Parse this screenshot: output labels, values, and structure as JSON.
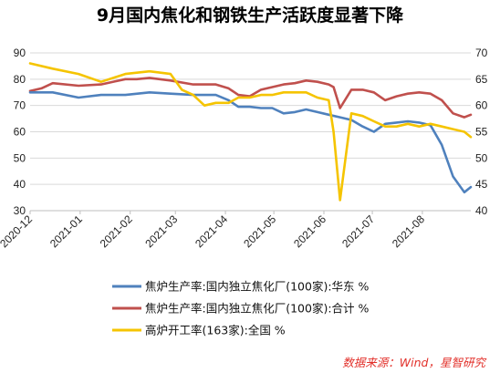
{
  "chart_data": {
    "type": "line",
    "title": "9月国内焦化和钢铁生产活跃度显著下降",
    "x_ticks": [
      "2020-12",
      "2021-01",
      "2021-02",
      "2021-03",
      "2021-04",
      "2021-05",
      "2021-06",
      "2021-07",
      "2021-08"
    ],
    "y_left": {
      "ticks": [
        "30",
        "40",
        "50",
        "60",
        "70",
        "80",
        "90"
      ],
      "min": 30,
      "max": 90
    },
    "y_right": {
      "ticks": [
        "40",
        "45",
        "50",
        "55",
        "60",
        "65",
        "70"
      ],
      "min": 40,
      "max": 70
    },
    "grid": true,
    "legend_position": "bottom",
    "source": "数据来源：Wind，星智研究",
    "series": [
      {
        "name": "焦炉生产率:国内独立焦化厂(100家):华东 %",
        "axis": "left",
        "color": "#4f81bd",
        "x": [
          "2020-12-01",
          "2020-12-15",
          "2020-12-31",
          "2021-01-14",
          "2021-01-29",
          "2021-02-13",
          "2021-02-26",
          "2021-03-12",
          "2021-03-26",
          "2021-04-03",
          "2021-04-09",
          "2021-04-16",
          "2021-04-23",
          "2021-04-30",
          "2021-05-07",
          "2021-05-14",
          "2021-05-21",
          "2021-05-28",
          "2021-06-04",
          "2021-06-11",
          "2021-06-18",
          "2021-06-25",
          "2021-07-02",
          "2021-07-09",
          "2021-07-16",
          "2021-07-23",
          "2021-07-30",
          "2021-08-06",
          "2021-08-13",
          "2021-08-20",
          "2021-08-27",
          "2021-08-31"
        ],
        "values": [
          75,
          75,
          73,
          74,
          74,
          75,
          74.5,
          74,
          74,
          72,
          69.5,
          69.5,
          69,
          69,
          67,
          67.5,
          68.5,
          67.5,
          66.5,
          65.5,
          64.5,
          62,
          60,
          63,
          63.5,
          64,
          63.5,
          62.5,
          55,
          43,
          37,
          39
        ]
      },
      {
        "name": "焦炉生产率:国内独立焦化厂(100家):合计 %",
        "axis": "left",
        "color": "#c0504d",
        "x": [
          "2020-12-01",
          "2020-12-08",
          "2020-12-15",
          "2020-12-31",
          "2021-01-14",
          "2021-01-29",
          "2021-02-05",
          "2021-02-13",
          "2021-02-26",
          "2021-03-12",
          "2021-03-19",
          "2021-03-26",
          "2021-04-03",
          "2021-04-09",
          "2021-04-16",
          "2021-04-23",
          "2021-04-30",
          "2021-05-07",
          "2021-05-14",
          "2021-05-21",
          "2021-05-28",
          "2021-06-04",
          "2021-06-07",
          "2021-06-11",
          "2021-06-18",
          "2021-06-25",
          "2021-07-02",
          "2021-07-09",
          "2021-07-16",
          "2021-07-23",
          "2021-07-30",
          "2021-08-06",
          "2021-08-13",
          "2021-08-20",
          "2021-08-27",
          "2021-08-31"
        ],
        "values": [
          75.5,
          76.5,
          78.5,
          77.5,
          78,
          80,
          80,
          80.5,
          79.5,
          78,
          78,
          78,
          76.5,
          74,
          73.5,
          76,
          77,
          78,
          78.5,
          79.5,
          79,
          78,
          77,
          69,
          76,
          76,
          75,
          72,
          73.5,
          74.5,
          75,
          74.5,
          72,
          67,
          65.5,
          66.5
        ]
      },
      {
        "name": "高炉开工率(163家):全国 %",
        "axis": "right",
        "color": "#f5c400",
        "x": [
          "2020-12-01",
          "2020-12-15",
          "2020-12-31",
          "2021-01-14",
          "2021-01-29",
          "2021-02-13",
          "2021-02-26",
          "2021-03-05",
          "2021-03-12",
          "2021-03-19",
          "2021-03-26",
          "2021-04-03",
          "2021-04-09",
          "2021-04-16",
          "2021-04-23",
          "2021-04-30",
          "2021-05-07",
          "2021-05-14",
          "2021-05-21",
          "2021-05-28",
          "2021-06-04",
          "2021-06-07",
          "2021-06-11",
          "2021-06-18",
          "2021-06-25",
          "2021-07-02",
          "2021-07-09",
          "2021-07-16",
          "2021-07-23",
          "2021-07-30",
          "2021-08-06",
          "2021-08-13",
          "2021-08-20",
          "2021-08-27",
          "2021-08-31"
        ],
        "values": [
          68,
          67,
          66,
          64.5,
          66,
          66.5,
          66,
          63,
          62,
          60,
          60.5,
          60.5,
          61.5,
          61.5,
          62,
          62,
          62.5,
          62.5,
          62.5,
          61.5,
          61,
          55,
          42,
          58.5,
          58,
          57,
          56,
          56,
          56.5,
          56,
          56.5,
          56,
          55.5,
          55,
          54
        ]
      }
    ]
  }
}
